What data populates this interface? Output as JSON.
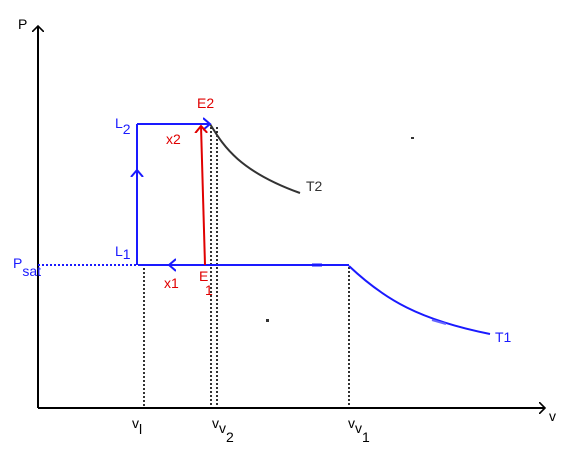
{
  "axes": {
    "y_label": "P",
    "x_label": "v"
  },
  "labels": {
    "p_sat": {
      "main": "P",
      "sub": "sat"
    },
    "l1": {
      "main": "L",
      "sub": "1"
    },
    "l2": {
      "main": "L",
      "sub": "2"
    },
    "e1": {
      "main": "E",
      "sub": "1"
    },
    "e2": "E2",
    "x1": "x1",
    "x2": "x2",
    "t1": "T1",
    "t2": "T2",
    "v_l": {
      "main": "v",
      "sub": "l"
    },
    "v_v1": {
      "main": "v",
      "sub": "v",
      "subsub": "1"
    },
    "v_v2": {
      "main": "v",
      "sub": "v",
      "subsub": "2"
    }
  },
  "colors": {
    "axis": "#000000",
    "process": "#1a1aff",
    "isotherm_t2": "#333333",
    "process_label": "#1a1aff",
    "compression": "#e00000",
    "guide": "#000000"
  }
}
